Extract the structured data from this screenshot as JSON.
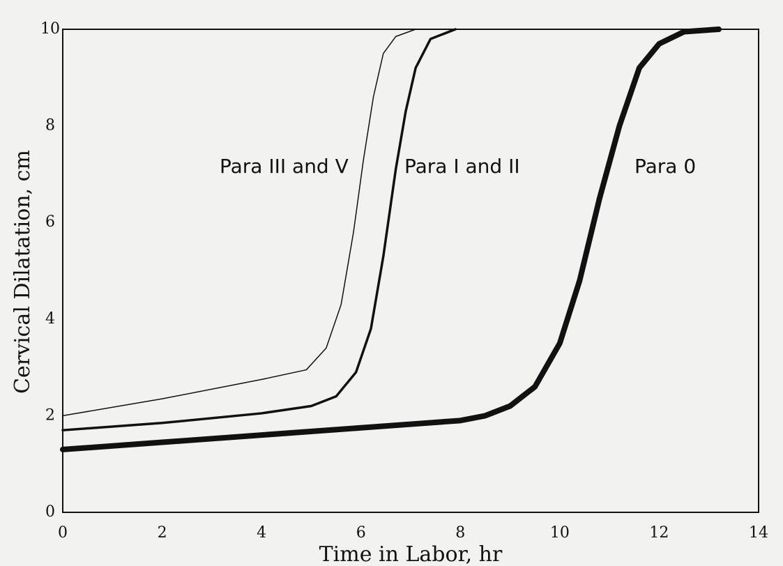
{
  "chart_data": {
    "type": "line",
    "xlabel": "Time in Labor, hr",
    "ylabel": "Cervical Dilatation, cm",
    "xlim": [
      0,
      14
    ],
    "xticks": [
      0,
      2,
      4,
      6,
      8,
      10,
      12,
      14
    ],
    "ylim": [
      0,
      10
    ],
    "yticks": [
      0,
      2,
      4,
      6,
      8,
      10
    ],
    "grid": false,
    "series": [
      {
        "name": "Para III and V",
        "color": "#111111",
        "line_width": 1.5,
        "x": [
          0,
          2,
          4,
          4.9,
          5.3,
          5.6,
          5.85,
          6.05,
          6.25,
          6.45,
          6.7,
          7.1
        ],
        "values": [
          2.0,
          2.35,
          2.75,
          2.95,
          3.4,
          4.3,
          5.8,
          7.3,
          8.6,
          9.5,
          9.85,
          10
        ]
      },
      {
        "name": "Para I and II",
        "color": "#111111",
        "line_width": 3.5,
        "x": [
          0,
          2,
          4,
          5,
          5.5,
          5.9,
          6.2,
          6.45,
          6.7,
          6.9,
          7.1,
          7.4,
          7.9
        ],
        "values": [
          1.7,
          1.85,
          2.05,
          2.2,
          2.4,
          2.9,
          3.8,
          5.3,
          7.1,
          8.3,
          9.2,
          9.8,
          10
        ]
      },
      {
        "name": "Para 0",
        "color": "#111111",
        "line_width": 8,
        "x": [
          0,
          2,
          4,
          6,
          8,
          8.5,
          9,
          9.5,
          10,
          10.4,
          10.8,
          11.2,
          11.6,
          12,
          12.5,
          13.2
        ],
        "values": [
          1.3,
          1.45,
          1.6,
          1.75,
          1.9,
          2.0,
          2.2,
          2.6,
          3.5,
          4.8,
          6.5,
          8.0,
          9.2,
          9.7,
          9.95,
          10
        ]
      }
    ]
  }
}
